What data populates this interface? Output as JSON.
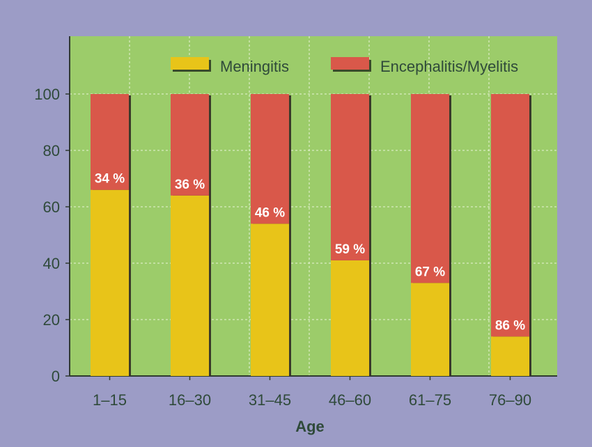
{
  "chart_data": {
    "type": "bar",
    "stacked": true,
    "categories": [
      "1–15",
      "16–30",
      "31–45",
      "46–60",
      "61–75",
      "76–90"
    ],
    "series": [
      {
        "name": "Meningitis",
        "values": [
          66,
          64,
          54,
          41,
          33,
          14
        ],
        "color": "#e8c419"
      },
      {
        "name": "Encephalitis/Myelitis",
        "values": [
          34,
          36,
          46,
          59,
          67,
          86
        ],
        "color": "#d9584a"
      }
    ],
    "data_labels": [
      "34 %",
      "36 %",
      "46 %",
      "59 %",
      "67 %",
      "86 %"
    ],
    "xlabel": "Age",
    "ylabel": "",
    "ylim": [
      0,
      100
    ],
    "yticks": [
      0,
      20,
      40,
      60,
      80,
      100
    ],
    "grid": true,
    "legend": "top",
    "colors": {
      "background": "#9c9cc6",
      "plot": "#9ccc6a"
    }
  }
}
